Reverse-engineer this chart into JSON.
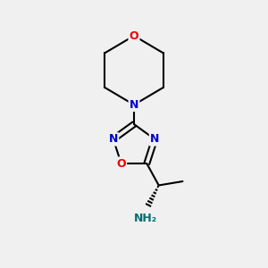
{
  "background_color": "#f0f0f0",
  "bond_color": "#000000",
  "bond_width": 1.5,
  "atom_colors": {
    "N": "#0000cc",
    "O": "#ee0000",
    "NH2": "#007070",
    "C": "#000000"
  },
  "font_size_atoms": 9,
  "font_size_NH2": 9,
  "figsize": [
    3.0,
    3.0
  ],
  "dpi": 100
}
